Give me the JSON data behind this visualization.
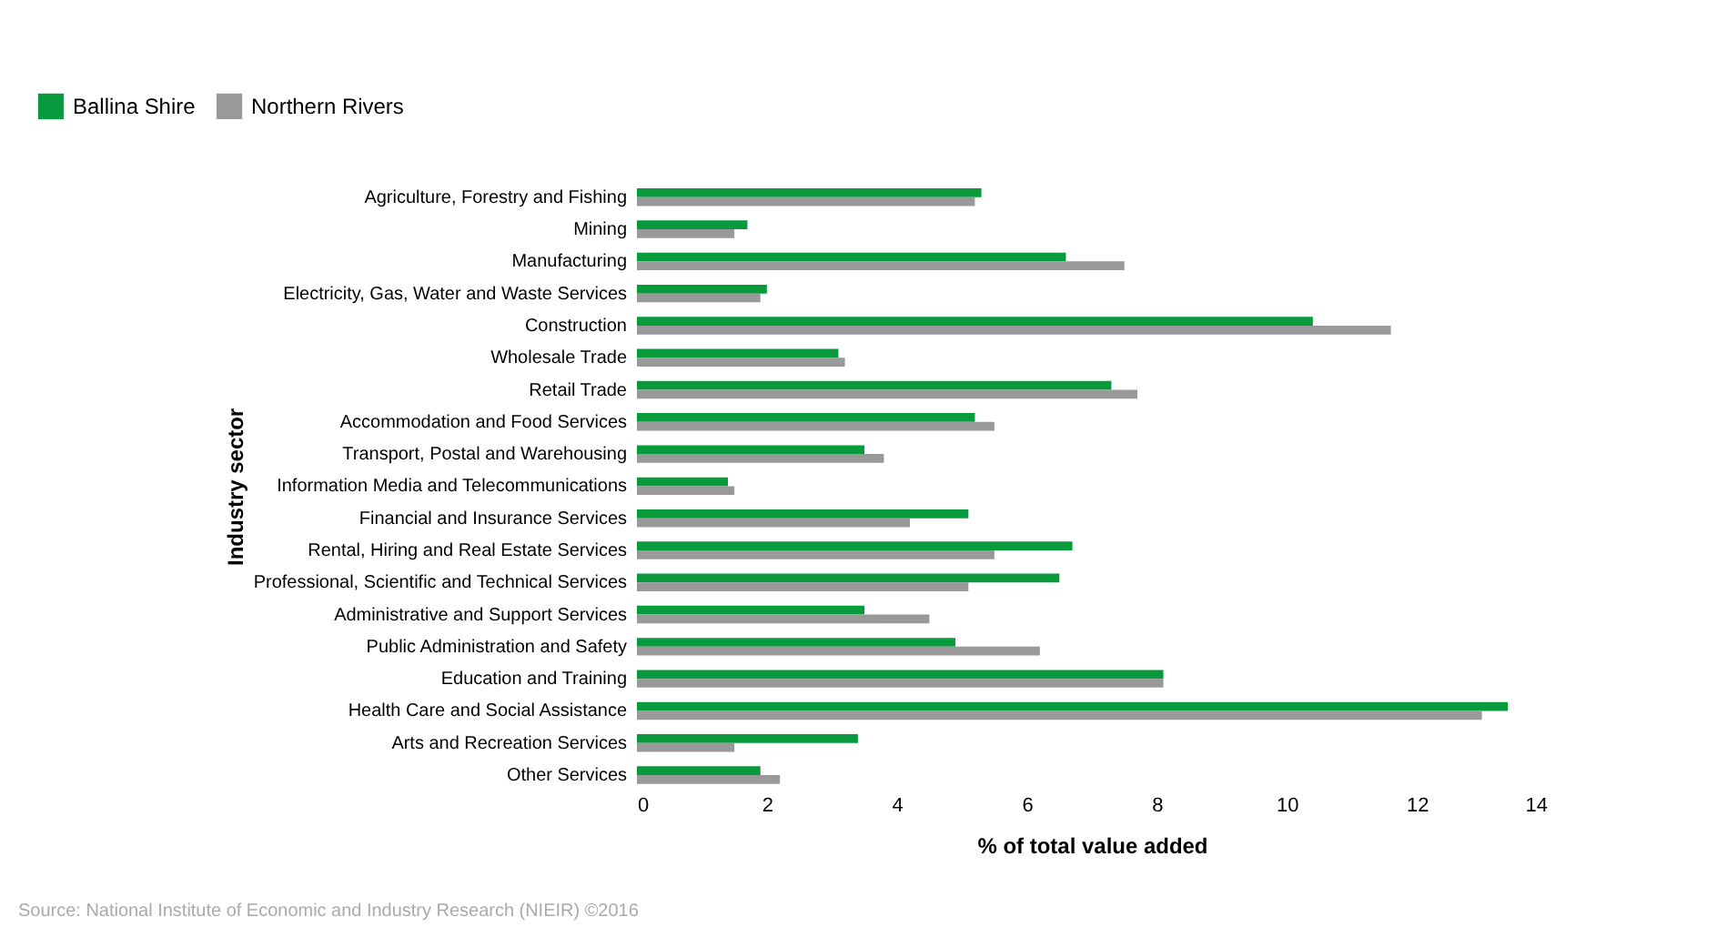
{
  "chart_data": {
    "type": "bar",
    "orientation": "horizontal",
    "categories": [
      "Agriculture, Forestry and Fishing",
      "Mining",
      "Manufacturing",
      "Electricity, Gas, Water and Waste Services",
      "Construction",
      "Wholesale Trade",
      "Retail Trade",
      "Accommodation and Food Services",
      "Transport, Postal and Warehousing",
      "Information Media and Telecommunications",
      "Financial and Insurance Services",
      "Rental, Hiring and Real Estate Services",
      "Professional, Scientific and Technical Services",
      "Administrative and Support Services",
      "Public Administration and Safety",
      "Education and Training",
      "Health Care and Social Assistance",
      "Arts and Recreation Services",
      "Other Services"
    ],
    "series": [
      {
        "name": "Ballina Shire",
        "color": "#0a9a3e",
        "values": [
          5.3,
          1.7,
          6.6,
          2.0,
          10.4,
          3.1,
          7.3,
          5.2,
          3.5,
          1.4,
          5.1,
          6.7,
          6.5,
          3.5,
          4.9,
          8.1,
          13.4,
          3.4,
          1.9
        ]
      },
      {
        "name": "Northern Rivers",
        "color": "#999999",
        "values": [
          5.2,
          1.5,
          7.5,
          1.9,
          11.6,
          3.2,
          7.7,
          5.5,
          3.8,
          1.5,
          4.2,
          5.5,
          5.1,
          4.5,
          6.2,
          8.1,
          13.0,
          1.5,
          2.2
        ]
      }
    ],
    "xlim": [
      0,
      14
    ],
    "xticks": [
      0,
      2,
      4,
      6,
      8,
      10,
      12,
      14
    ],
    "xlabel": "% of total value added",
    "ylabel": "Industry sector",
    "legend": "top left",
    "grid": false,
    "annotations": [
      "Source: National Institute of Economic and Industry Research (NIEIR) ©2016"
    ]
  }
}
